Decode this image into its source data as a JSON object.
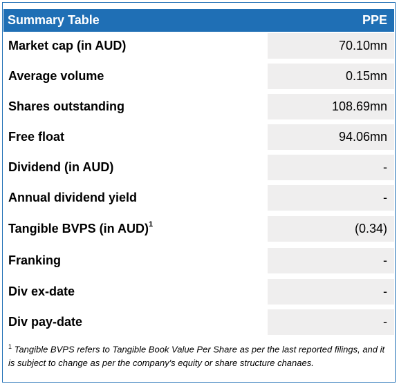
{
  "table": {
    "title": "Summary Table",
    "ticker": "PPE",
    "rows": [
      {
        "label": "Market cap (in AUD)",
        "value": "70.10mn"
      },
      {
        "label": "Average volume",
        "value": "0.15mn"
      },
      {
        "label": "Shares outstanding",
        "value": "108.69mn"
      },
      {
        "label": "Free float",
        "value": "94.06mn"
      },
      {
        "label": "Dividend (in AUD)",
        "value": "-"
      },
      {
        "label": "Annual dividend yield",
        "value": "-"
      },
      {
        "label": "Tangible BVPS (in AUD)",
        "sup": "1",
        "value": "(0.34)"
      },
      {
        "label": "Franking",
        "value": "-"
      },
      {
        "label": "Div ex-date",
        "value": "-"
      },
      {
        "label": "Div pay-date",
        "value": "-"
      }
    ]
  },
  "footnote": {
    "marker": "1",
    "text": "Tangible BVPS refers to Tangible Book Value Per Share as per the last reported filings, and it is subject to change as per the company's equity or share structure chanaes."
  },
  "colors": {
    "header_bg": "#1f6fb5",
    "value_cell_bg": "#efeeee"
  }
}
